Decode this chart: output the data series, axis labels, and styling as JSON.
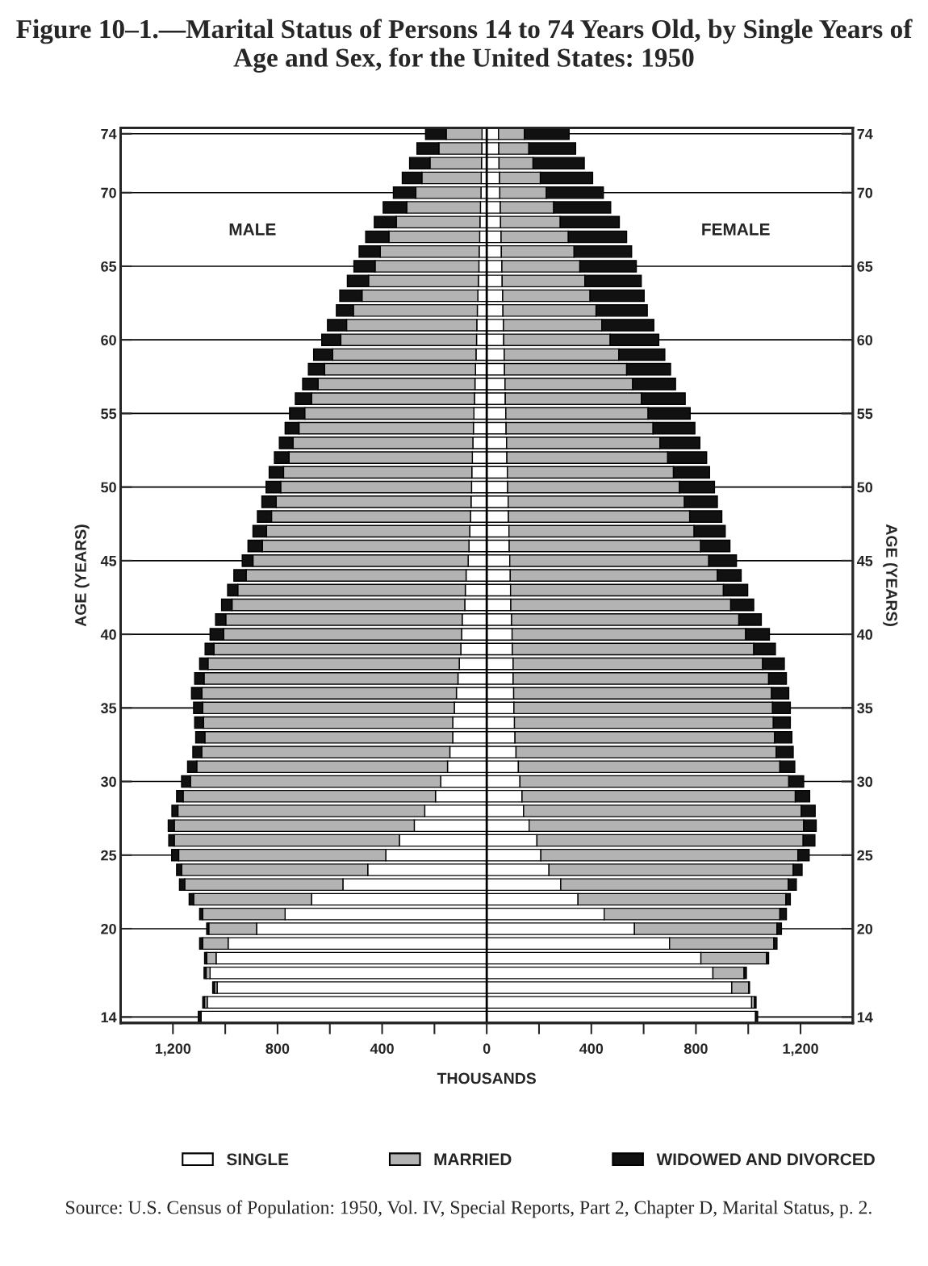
{
  "chart_data": {
    "type": "bar",
    "orientation": "horizontal",
    "stacked": true,
    "title": "Figure 10–1.—Marital Status of Persons 14 to 74 Years Old, by Single Years of Age and Sex, for the United States: 1950",
    "xlabel": "THOUSANDS",
    "ylabel": "AGE (YEARS)",
    "y2label": "AGE (YEARS)",
    "x": [
      14,
      15,
      16,
      17,
      18,
      19,
      20,
      21,
      22,
      23,
      24,
      25,
      26,
      27,
      28,
      29,
      30,
      31,
      32,
      33,
      34,
      35,
      36,
      37,
      38,
      39,
      40,
      41,
      42,
      43,
      44,
      45,
      46,
      47,
      48,
      49,
      50,
      51,
      52,
      53,
      54,
      55,
      56,
      57,
      58,
      59,
      60,
      61,
      62,
      63,
      64,
      65,
      66,
      67,
      68,
      69,
      70,
      71,
      72,
      73,
      74
    ],
    "series": [
      {
        "color": "#ffffff",
        "values": [
          -1092,
          -1069,
          -1031,
          -1058,
          -1035,
          -989,
          -880,
          -771,
          -670,
          -550,
          -455,
          -386,
          -334,
          -277,
          -237,
          -196,
          -176,
          -150,
          -141,
          -130,
          -130,
          -124,
          -116,
          -110,
          -105,
          -99,
          -96,
          -94,
          -84,
          -82,
          -79,
          -71,
          -68,
          -65,
          -62,
          -60,
          -58,
          -57,
          -55,
          -53,
          -51,
          -49,
          -47,
          -45,
          -43,
          -41,
          -39,
          -38,
          -36,
          -34,
          -32,
          -30,
          -29,
          -27,
          -26,
          -24,
          -22,
          -21,
          -20,
          -19,
          -18
        ]
      },
      {
        "color": "#b3b3b3",
        "values": [
          0,
          -10,
          -10,
          -15,
          -36,
          -97,
          -183,
          -315,
          -451,
          -605,
          -712,
          -792,
          -861,
          -918,
          -944,
          -965,
          -957,
          -959,
          -949,
          -948,
          -953,
          -962,
          -973,
          -971,
          -961,
          -944,
          -910,
          -904,
          -890,
          -870,
          -841,
          -823,
          -790,
          -777,
          -761,
          -745,
          -730,
          -720,
          -701,
          -688,
          -667,
          -647,
          -623,
          -600,
          -577,
          -548,
          -519,
          -498,
          -474,
          -443,
          -420,
          -397,
          -378,
          -347,
          -320,
          -282,
          -249,
          -227,
          -197,
          -164,
          -137
        ]
      },
      {
        "color": "#111111",
        "values": [
          -11,
          -7,
          -7,
          -8,
          -8,
          -12,
          -8,
          -12,
          -17,
          -20,
          -19,
          -27,
          -21,
          -23,
          -23,
          -25,
          -34,
          -35,
          -34,
          -35,
          -34,
          -35,
          -40,
          -36,
          -32,
          -34,
          -52,
          -39,
          -40,
          -39,
          -47,
          -41,
          -55,
          -52,
          -54,
          -55,
          -56,
          -55,
          -56,
          -52,
          -53,
          -58,
          -62,
          -59,
          -62,
          -73,
          -73,
          -73,
          -65,
          -85,
          -81,
          -81,
          -81,
          -89,
          -84,
          -90,
          -86,
          -75,
          -78,
          -84,
          -79
        ]
      },
      {
        "name": "SINGLE",
        "color": "#ffffff",
        "values": [
          1028,
          1013,
          937,
          865,
          819,
          699,
          565,
          449,
          349,
          283,
          238,
          207,
          192,
          162,
          141,
          135,
          127,
          121,
          112,
          108,
          106,
          104,
          103,
          101,
          101,
          98,
          97,
          95,
          92,
          91,
          90,
          88,
          86,
          85,
          83,
          82,
          80,
          79,
          77,
          76,
          74,
          73,
          71,
          70,
          68,
          67,
          65,
          64,
          62,
          61,
          59,
          58,
          56,
          55,
          53,
          52,
          50,
          49,
          47,
          46,
          45
        ]
      },
      {
        "name": "MARRIED",
        "color": "#b3b3b3",
        "values": [
          0,
          11,
          65,
          119,
          251,
          399,
          545,
          672,
          795,
          870,
          934,
          983,
          1018,
          1050,
          1062,
          1045,
          1028,
          1000,
          995,
          993,
          990,
          989,
          986,
          977,
          954,
          923,
          893,
          869,
          841,
          814,
          792,
          761,
          732,
          708,
          693,
          674,
          657,
          635,
          615,
          586,
          562,
          544,
          520,
          488,
          467,
          438,
          407,
          376,
          356,
          334,
          316,
          298,
          278,
          257,
          228,
          204,
          178,
          156,
          130,
          115,
          99
        ]
      },
      {
        "name": "WIDOWED AND DIVORCED",
        "color": "#111111",
        "values": [
          8,
          6,
          3,
          9,
          8,
          12,
          17,
          25,
          17,
          31,
          34,
          43,
          45,
          48,
          53,
          55,
          57,
          57,
          65,
          66,
          65,
          68,
          66,
          68,
          83,
          83,
          91,
          86,
          88,
          93,
          91,
          106,
          112,
          119,
          123,
          126,
          134,
          138,
          149,
          153,
          160,
          161,
          168,
          164,
          168,
          176,
          186,
          199,
          196,
          207,
          216,
          216,
          220,
          223,
          226,
          218,
          218,
          200,
          196,
          179,
          171
        ]
      }
    ],
    "xlim": [
      -1400,
      1400
    ],
    "xticks": [
      {
        "value": -1200,
        "label": "1,200"
      },
      {
        "value": -1000,
        "label": null
      },
      {
        "value": -800,
        "label": "800"
      },
      {
        "value": -600,
        "label": null
      },
      {
        "value": -400,
        "label": "400"
      },
      {
        "value": -200,
        "label": null
      },
      0,
      {
        "value": 200,
        "label": null
      },
      400,
      {
        "value": 600,
        "label": null
      },
      800,
      {
        "value": 1000,
        "label": null
      },
      {
        "value": 1200,
        "label": "1,200"
      }
    ],
    "ylim": [
      13.6,
      74.4
    ],
    "yticks": [
      14,
      20,
      25,
      30,
      35,
      40,
      45,
      50,
      55,
      60,
      65,
      70,
      74
    ],
    "y2lim": [
      13.6,
      74.4
    ],
    "y2ticks": [
      14,
      20,
      25,
      30,
      35,
      40,
      45,
      50,
      55,
      60,
      65,
      70,
      74
    ],
    "grid": "y",
    "legend": "bottom",
    "ref_lines": [
      {
        "axis": "x",
        "value": 0,
        "color": "#000000"
      }
    ],
    "annotations": [
      "MALE",
      "FEMALE",
      "Source: U.S. Census of Population: 1950, Vol. IV, Special Reports, Part 2, Chapter D, Marital Status, p. 2."
    ]
  }
}
